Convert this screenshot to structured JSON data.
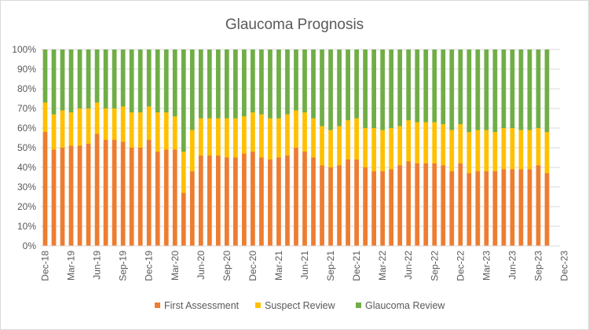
{
  "chart_data": {
    "type": "bar",
    "stacked": "percent",
    "title": "Glaucoma Prognosis",
    "xlabel": "",
    "ylabel": "",
    "ylim": [
      0,
      1
    ],
    "y_ticks": [
      "0%",
      "10%",
      "20%",
      "30%",
      "40%",
      "50%",
      "60%",
      "70%",
      "80%",
      "90%",
      "100%"
    ],
    "x_tick_labels": [
      "Dec-18",
      "Mar-19",
      "Jun-19",
      "Sep-19",
      "Dec-19",
      "Mar-20",
      "Jun-20",
      "Sep-20",
      "Dec-20",
      "Mar-21",
      "Jun-21",
      "Sep-21",
      "Dec-21",
      "Mar-22",
      "Jun-22",
      "Sep-22",
      "Dec-22",
      "Mar-23",
      "Jun-23",
      "Sep-23",
      "Dec-23"
    ],
    "categories": [
      "Dec-18",
      "Jan-19",
      "Feb-19",
      "Mar-19",
      "Apr-19",
      "May-19",
      "Jun-19",
      "Jul-19",
      "Aug-19",
      "Sep-19",
      "Oct-19",
      "Nov-19",
      "Dec-19",
      "Jan-20",
      "Feb-20",
      "Mar-20",
      "Apr-20",
      "May-20",
      "Jun-20",
      "Jul-20",
      "Aug-20",
      "Sep-20",
      "Oct-20",
      "Nov-20",
      "Dec-20",
      "Jan-21",
      "Feb-21",
      "Mar-21",
      "Apr-21",
      "May-21",
      "Jun-21",
      "Jul-21",
      "Aug-21",
      "Sep-21",
      "Oct-21",
      "Nov-21",
      "Dec-21",
      "Jan-22",
      "Feb-22",
      "Mar-22",
      "Apr-22",
      "May-22",
      "Jun-22",
      "Jul-22",
      "Aug-22",
      "Sep-22",
      "Oct-22",
      "Nov-22",
      "Dec-22",
      "Jan-23",
      "Feb-23",
      "Mar-23",
      "Apr-23",
      "May-23",
      "Jun-23",
      "Jul-23",
      "Aug-23",
      "Sep-23",
      "Oct-23"
    ],
    "series": [
      {
        "name": "First Assessment",
        "color": "#ed7d31",
        "values": [
          0.58,
          0.49,
          0.5,
          0.51,
          0.51,
          0.52,
          0.57,
          0.54,
          0.54,
          0.53,
          0.5,
          0.5,
          0.54,
          0.48,
          0.49,
          0.49,
          0.27,
          0.38,
          0.46,
          0.46,
          0.46,
          0.45,
          0.45,
          0.47,
          0.48,
          0.45,
          0.44,
          0.45,
          0.46,
          0.5,
          0.48,
          0.45,
          0.41,
          0.4,
          0.41,
          0.44,
          0.44,
          0.4,
          0.38,
          0.38,
          0.39,
          0.41,
          0.43,
          0.42,
          0.42,
          0.42,
          0.41,
          0.38,
          0.42,
          0.37,
          0.38,
          0.38,
          0.38,
          0.39,
          0.39,
          0.39,
          0.39,
          0.41,
          0.37
        ]
      },
      {
        "name": "Suspect Review",
        "color": "#ffc000",
        "values": [
          0.15,
          0.18,
          0.19,
          0.17,
          0.19,
          0.18,
          0.16,
          0.16,
          0.16,
          0.18,
          0.18,
          0.18,
          0.17,
          0.2,
          0.19,
          0.17,
          0.21,
          0.21,
          0.19,
          0.19,
          0.19,
          0.2,
          0.2,
          0.19,
          0.2,
          0.22,
          0.21,
          0.2,
          0.21,
          0.19,
          0.2,
          0.2,
          0.2,
          0.19,
          0.2,
          0.2,
          0.21,
          0.2,
          0.22,
          0.21,
          0.21,
          0.2,
          0.21,
          0.21,
          0.21,
          0.21,
          0.21,
          0.21,
          0.2,
          0.21,
          0.21,
          0.21,
          0.2,
          0.21,
          0.21,
          0.2,
          0.2,
          0.19,
          0.21
        ]
      },
      {
        "name": "Glaucoma Review",
        "color": "#70ad47",
        "values": [
          0.27,
          0.33,
          0.31,
          0.32,
          0.3,
          0.3,
          0.27,
          0.3,
          0.3,
          0.29,
          0.32,
          0.32,
          0.29,
          0.32,
          0.32,
          0.34,
          0.52,
          0.41,
          0.35,
          0.35,
          0.35,
          0.35,
          0.35,
          0.34,
          0.32,
          0.33,
          0.35,
          0.35,
          0.33,
          0.31,
          0.32,
          0.35,
          0.39,
          0.41,
          0.39,
          0.36,
          0.35,
          0.4,
          0.4,
          0.41,
          0.4,
          0.39,
          0.36,
          0.37,
          0.37,
          0.37,
          0.38,
          0.41,
          0.38,
          0.42,
          0.41,
          0.41,
          0.42,
          0.4,
          0.4,
          0.41,
          0.41,
          0.4,
          0.42
        ]
      }
    ],
    "legend": {
      "position": "bottom"
    },
    "grid": {
      "horizontal": true,
      "vertical": false
    }
  }
}
